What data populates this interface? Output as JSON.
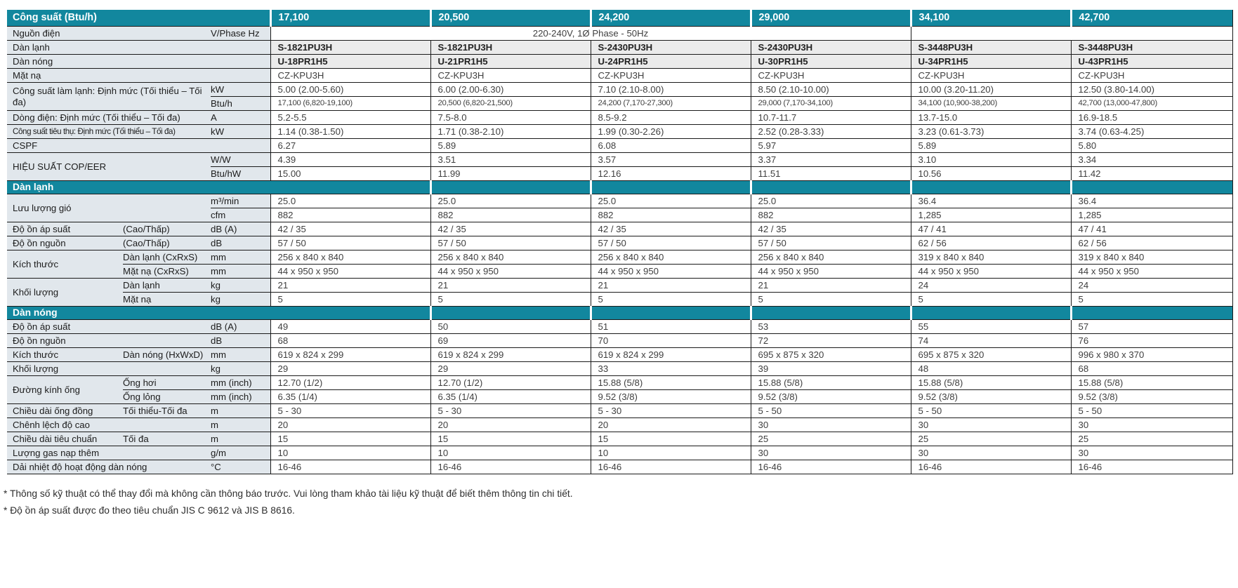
{
  "colors": {
    "teal": "#12879e",
    "label_bg": "#e1e7ec",
    "model_bg": "#ebebeb",
    "border": "#1a1a1a"
  },
  "table": {
    "rows": [
      {
        "type": "header",
        "label": "Công suất (Btu/h)",
        "values": [
          "17,100",
          "20,500",
          "24,200",
          "29,000",
          "34,100",
          "42,700"
        ]
      },
      {
        "type": "data",
        "label": "Nguồn điện",
        "lcs": 2,
        "unit": "V/Phase Hz",
        "spans": [
          {
            "text": "220-240V, 1Ø Phase - 50Hz",
            "cols": 4,
            "align": "center"
          },
          {
            "text": "",
            "cols": 2
          }
        ]
      },
      {
        "type": "data",
        "label": "Dàn lạnh",
        "lcs": 3,
        "vbg": "model",
        "values": [
          "S-1821PU3H",
          "S-1821PU3H",
          "S-2430PU3H",
          "S-2430PU3H",
          "S-3448PU3H",
          "S-3448PU3H"
        ]
      },
      {
        "type": "data",
        "label": "Dàn nóng",
        "lcs": 3,
        "vbg": "model",
        "values": [
          "U-18PR1H5",
          "U-21PR1H5",
          "U-24PR1H5",
          "U-30PR1H5",
          "U-34PR1H5",
          "U-43PR1H5"
        ]
      },
      {
        "type": "data",
        "label": "Mặt nạ",
        "lcs": 3,
        "values": [
          "CZ-KPU3H",
          "CZ-KPU3H",
          "CZ-KPU3H",
          "CZ-KPU3H",
          "CZ-KPU3H",
          "CZ-KPU3H"
        ]
      },
      {
        "type": "data",
        "label": "Công suất làm lạnh: Định mức (Tối thiểu – Tối đa)",
        "lcs": 2,
        "lrs": 2,
        "unit": "kW",
        "values": [
          "5.00 (2.00-5.60)",
          "6.00 (2.00-6.30)",
          "7.10 (2.10-8.00)",
          "8.50 (2.10-10.00)",
          "10.00 (3.20-11.20)",
          "12.50 (3.80-14.00)"
        ]
      },
      {
        "type": "data",
        "unit": "Btu/h",
        "small": true,
        "values": [
          "17,100 (6,820-19,100)",
          "20,500 (6,820-21,500)",
          "24,200 (7,170-27,300)",
          "29,000 (7,170-34,100)",
          "34,100 (10,900-38,200)",
          "42,700 (13,000-47,800)"
        ]
      },
      {
        "type": "data",
        "label": "Dòng điện: Định mức (Tối thiểu – Tối đa)",
        "lcs": 2,
        "unit": "A",
        "values": [
          "5.2-5.5",
          "7.5-8.0",
          "8.5-9.2",
          "10.7-11.7",
          "13.7-15.0",
          "16.9-18.5"
        ]
      },
      {
        "type": "data",
        "label": "Công suất tiêu thụ: Định mức (Tối thiểu – Tối đa)",
        "lcs": 2,
        "label_small": true,
        "unit": "kW",
        "values": [
          "1.14 (0.38-1.50)",
          "1.71 (0.38-2.10)",
          "1.99 (0.30-2.26)",
          "2.52 (0.28-3.33)",
          "3.23 (0.61-3.73)",
          "3.74 (0.63-4.25)"
        ]
      },
      {
        "type": "data",
        "label": "CSPF",
        "lcs": 3,
        "values": [
          "6.27",
          "5.89",
          "6.08",
          "5.97",
          "5.89",
          "5.80"
        ]
      },
      {
        "type": "data",
        "label": "HIỆU SUẤT COP/EER",
        "lcs": 2,
        "lrs": 2,
        "unit": "W/W",
        "values": [
          "4.39",
          "3.51",
          "3.57",
          "3.37",
          "3.10",
          "3.34"
        ]
      },
      {
        "type": "data",
        "unit": "Btu/hW",
        "values": [
          "15.00",
          "11.99",
          "12.16",
          "11.51",
          "10.56",
          "11.42"
        ]
      },
      {
        "type": "section",
        "label": "Dàn lạnh"
      },
      {
        "type": "data",
        "label": "Lưu lượng gió",
        "lcs": 2,
        "lrs": 2,
        "unit": "m³/min",
        "values": [
          "25.0",
          "25.0",
          "25.0",
          "25.0",
          "36.4",
          "36.4"
        ]
      },
      {
        "type": "data",
        "unit": "cfm",
        "values": [
          "882",
          "882",
          "882",
          "882",
          "1,285",
          "1,285"
        ]
      },
      {
        "type": "data",
        "label": "Độ ồn áp suất",
        "sublabel": "(Cao/Thấp)",
        "unit": "dB (A)",
        "values": [
          "42 / 35",
          "42 / 35",
          "42 / 35",
          "42 / 35",
          "47 / 41",
          "47 / 41"
        ]
      },
      {
        "type": "data",
        "label": "Độ ồn nguồn",
        "sublabel": "(Cao/Thấp)",
        "unit": "dB",
        "values": [
          "57 / 50",
          "57 / 50",
          "57 / 50",
          "57 / 50",
          "62 / 56",
          "62 / 56"
        ]
      },
      {
        "type": "data",
        "label": "Kích thước",
        "lrs": 2,
        "sublabel": "Dàn lạnh (CxRxS)",
        "unit": "mm",
        "values": [
          "256 x 840 x 840",
          "256 x 840 x 840",
          "256 x 840 x 840",
          "256 x 840 x 840",
          "319 x 840 x 840",
          "319 x 840 x 840"
        ]
      },
      {
        "type": "data",
        "sublabel": "Mặt nạ (CxRxS)",
        "unit": "mm",
        "values": [
          "44 x 950 x 950",
          "44 x 950 x 950",
          "44 x 950 x 950",
          "44 x 950 x 950",
          "44 x 950 x 950",
          "44 x 950 x 950"
        ]
      },
      {
        "type": "data",
        "label": "Khối lượng",
        "lrs": 2,
        "sublabel": "Dàn lạnh",
        "unit": "kg",
        "values": [
          "21",
          "21",
          "21",
          "21",
          "24",
          "24"
        ]
      },
      {
        "type": "data",
        "sublabel": "Mặt nạ",
        "unit": "kg",
        "values": [
          "5",
          "5",
          "5",
          "5",
          "5",
          "5"
        ]
      },
      {
        "type": "section",
        "label": "Dàn nóng"
      },
      {
        "type": "data",
        "label": "Độ ồn áp suất",
        "lcs": 2,
        "unit": "dB (A)",
        "values": [
          "49",
          "50",
          "51",
          "53",
          "55",
          "57"
        ]
      },
      {
        "type": "data",
        "label": "Độ ồn nguồn",
        "lcs": 2,
        "unit": "dB",
        "values": [
          "68",
          "69",
          "70",
          "72",
          "74",
          "76"
        ]
      },
      {
        "type": "data",
        "label": "Kích thước",
        "sublabel": "Dàn nóng (HxWxD)",
        "unit": "mm",
        "values": [
          "619 x 824 x 299",
          "619 x 824 x 299",
          "619 x 824 x 299",
          "695 x 875 x 320",
          "695 x 875 x 320",
          "996 x 980 x 370"
        ]
      },
      {
        "type": "data",
        "label": "Khối lượng",
        "lcs": 2,
        "unit": "kg",
        "values": [
          "29",
          "29",
          "33",
          "39",
          "48",
          "68"
        ]
      },
      {
        "type": "data",
        "label": "Đường kính ống",
        "lrs": 2,
        "sublabel": "Ống hơi",
        "unit": "mm (inch)",
        "values": [
          "12.70 (1/2)",
          "12.70 (1/2)",
          "15.88 (5/8)",
          "15.88 (5/8)",
          "15.88 (5/8)",
          "15.88 (5/8)"
        ]
      },
      {
        "type": "data",
        "sublabel": "Ống lỏng",
        "unit": "mm (inch)",
        "values": [
          "6.35 (1/4)",
          "6.35 (1/4)",
          "9.52 (3/8)",
          "9.52 (3/8)",
          "9.52 (3/8)",
          "9.52 (3/8)"
        ]
      },
      {
        "type": "data",
        "label": "Chiều dài ống đồng",
        "sublabel": "Tối thiểu-Tối đa",
        "unit": "m",
        "values": [
          "5 - 30",
          "5 - 30",
          "5 - 30",
          "5 - 50",
          "5 - 50",
          "5 - 50"
        ]
      },
      {
        "type": "data",
        "label": "Chênh lệch độ cao",
        "lcs": 2,
        "unit": "m",
        "values": [
          "20",
          "20",
          "20",
          "30",
          "30",
          "30"
        ]
      },
      {
        "type": "data",
        "label": "Chiều dài tiêu chuẩn",
        "sublabel": "Tối đa",
        "unit": "m",
        "values": [
          "15",
          "15",
          "15",
          "25",
          "25",
          "25"
        ]
      },
      {
        "type": "data",
        "label": "Lượng gas nạp thêm",
        "lcs": 2,
        "unit": "g/m",
        "values": [
          "10",
          "10",
          "10",
          "30",
          "30",
          "30"
        ]
      },
      {
        "type": "data",
        "label": "Dải nhiệt độ hoạt động dàn nóng",
        "lcs": 2,
        "unit": "°C",
        "values": [
          "16-46",
          "16-46",
          "16-46",
          "16-46",
          "16-46",
          "16-46"
        ]
      }
    ]
  },
  "footnotes": [
    "* Thông số kỹ thuật có thể thay đổi mà không cần thông báo trước. Vui lòng tham khảo tài liệu kỹ thuật để biết thêm thông tin chi tiết.",
    "* Độ ồn áp suất được đo theo tiêu chuẩn JIS C 9612 và JIS B 8616."
  ]
}
